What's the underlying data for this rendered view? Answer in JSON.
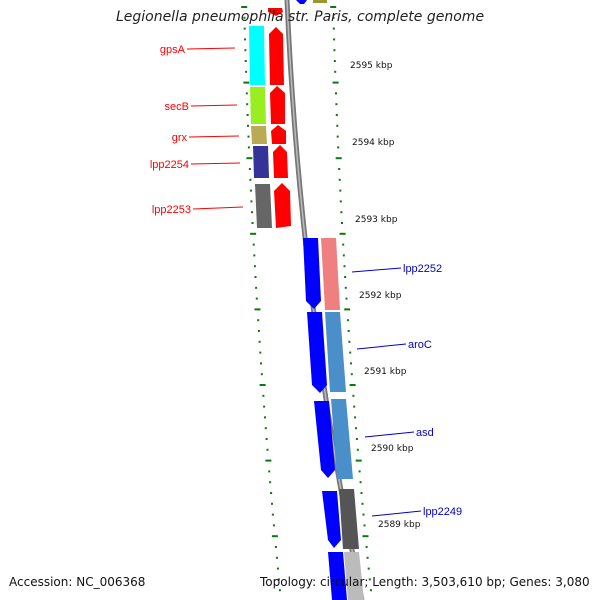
{
  "title": "Legionella pneumophila str. Paris, complete genome",
  "footer": {
    "accession": "Accession: NC_006368",
    "summary": "Topology: circular; Length: 3,503,610 bp; Genes: 3,080"
  },
  "ticks": [
    {
      "label": "2595 kbp",
      "kbp": 2595
    },
    {
      "label": "2594 kbp",
      "kbp": 2594
    },
    {
      "label": "2593 kbp",
      "kbp": 2593
    },
    {
      "label": "2592 kbp",
      "kbp": 2592
    },
    {
      "label": "2591 kbp",
      "kbp": 2591
    },
    {
      "label": "2590 kbp",
      "kbp": 2590
    },
    {
      "label": "2589 kbp",
      "kbp": 2589
    }
  ],
  "genes_left": [
    {
      "label": "gpsA",
      "color": "#ff0000"
    },
    {
      "label": "secB",
      "color": "#ff0000"
    },
    {
      "label": "grx",
      "color": "#ff0000"
    },
    {
      "label": "lpp2254",
      "color": "#ff0000"
    },
    {
      "label": "lpp2253",
      "color": "#ff0000"
    }
  ],
  "genes_right": [
    {
      "label": "lpp2252",
      "color": "#0000cc"
    },
    {
      "label": "aroC",
      "color": "#0000cc"
    },
    {
      "label": "asd",
      "color": "#0000cc"
    },
    {
      "label": "lpp2249",
      "color": "#0000cc"
    }
  ],
  "colors": {
    "forward_strand": "#ff0000",
    "reverse_strand": "#0000ff",
    "backbone": "#888888",
    "tick_marks": "#0a7a0a",
    "cog_cyan": "#00ffff",
    "cog_lime": "#99ee22",
    "cog_khaki": "#bbaa55",
    "cog_navy": "#333399",
    "cog_grey": "#666666",
    "cog_pink": "#f08080",
    "cog_steelblue": "#4a8fc9",
    "cog_darkgrey": "#555555",
    "cog_lightgrey": "#bbbbbb",
    "cog_olive": "#999933"
  }
}
